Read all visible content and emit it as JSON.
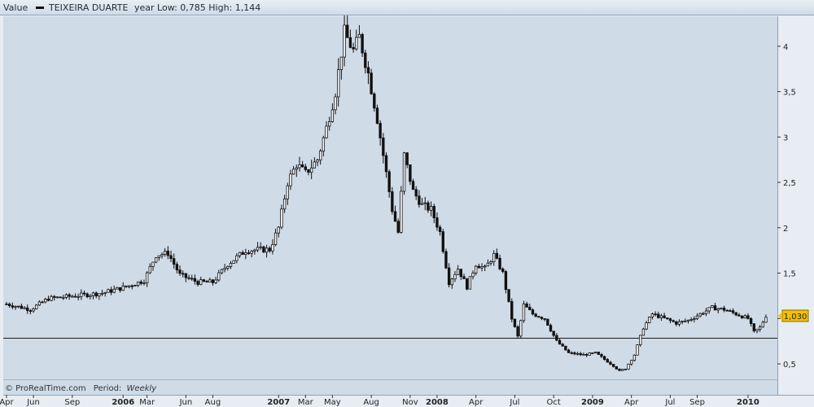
{
  "header": {
    "value_label": "Value",
    "instrument": "TEIXEIRA DUARTE",
    "range_text": "year Low: 0,785 High: 1,144"
  },
  "footer": {
    "source": "© ProRealTime.com",
    "period_label": "Period:",
    "period_value": "Weekly"
  },
  "colors": {
    "plot_bg": "#cfdbe7",
    "candle": "#111111",
    "badge": "#f5c000"
  },
  "chart_data": {
    "type": "candlestick",
    "series": [
      {
        "name": "TEIXEIRA DUARTE"
      }
    ],
    "ylim": [
      0.33,
      4.33
    ],
    "y_ticks": [
      "4",
      "3,5",
      "3",
      "2,5",
      "2",
      "1,5",
      "",
      "0,5"
    ],
    "y_tick_values": [
      4,
      3.5,
      3,
      2.5,
      2,
      1.5,
      1,
      0.5
    ],
    "x_ticks": [
      {
        "label": "Apr",
        "x": 0.0,
        "major": false
      },
      {
        "label": "Jun",
        "x": 9.0,
        "major": false
      },
      {
        "label": "Sep",
        "x": 22.0,
        "major": false
      },
      {
        "label": "2006",
        "x": 39.0,
        "major": true
      },
      {
        "label": "Mar",
        "x": 47.0,
        "major": false
      },
      {
        "label": "Jun",
        "x": 60.0,
        "major": false
      },
      {
        "label": "Aug",
        "x": 69.0,
        "major": false
      },
      {
        "label": "2007",
        "x": 91.0,
        "major": true
      },
      {
        "label": "Mar",
        "x": 100.0,
        "major": false
      },
      {
        "label": "May",
        "x": 109.0,
        "major": false
      },
      {
        "label": "Aug",
        "x": 122.0,
        "major": false
      },
      {
        "label": "Nov",
        "x": 135.0,
        "major": false
      },
      {
        "label": "2008",
        "x": 144.0,
        "major": true
      },
      {
        "label": "Apr",
        "x": 157.0,
        "major": false
      },
      {
        "label": "Jul",
        "x": 170.0,
        "major": false
      },
      {
        "label": "Oct",
        "x": 183.0,
        "major": false
      },
      {
        "label": "2009",
        "x": 196.0,
        "major": true
      },
      {
        "label": "Apr",
        "x": 209.0,
        "major": false
      },
      {
        "label": "Jul",
        "x": 222.0,
        "major": false
      },
      {
        "label": "Sep",
        "x": 231.0,
        "major": false
      },
      {
        "label": "2010",
        "x": 248.0,
        "major": true
      }
    ],
    "last_value_label": "1,030",
    "last_value": 1.03,
    "horizontal_line": 0.785,
    "grid": false,
    "key_closes": [
      {
        "x": 0,
        "y": 1.16
      },
      {
        "x": 8,
        "y": 1.1
      },
      {
        "x": 14,
        "y": 1.22
      },
      {
        "x": 26,
        "y": 1.26
      },
      {
        "x": 32,
        "y": 1.28
      },
      {
        "x": 40,
        "y": 1.35
      },
      {
        "x": 46,
        "y": 1.42
      },
      {
        "x": 50,
        "y": 1.7
      },
      {
        "x": 54,
        "y": 1.72
      },
      {
        "x": 58,
        "y": 1.48
      },
      {
        "x": 64,
        "y": 1.4
      },
      {
        "x": 69,
        "y": 1.4
      },
      {
        "x": 74,
        "y": 1.6
      },
      {
        "x": 80,
        "y": 1.75
      },
      {
        "x": 86,
        "y": 1.76
      },
      {
        "x": 88,
        "y": 1.76
      },
      {
        "x": 91,
        "y": 2.0
      },
      {
        "x": 94,
        "y": 2.5
      },
      {
        "x": 97,
        "y": 2.7
      },
      {
        "x": 100,
        "y": 2.6
      },
      {
        "x": 104,
        "y": 2.75
      },
      {
        "x": 107,
        "y": 3.1
      },
      {
        "x": 110,
        "y": 3.5
      },
      {
        "x": 113,
        "y": 4.15
      },
      {
        "x": 116,
        "y": 3.95
      },
      {
        "x": 118,
        "y": 4.1
      },
      {
        "x": 121,
        "y": 3.7
      },
      {
        "x": 124,
        "y": 3.2
      },
      {
        "x": 127,
        "y": 2.6
      },
      {
        "x": 129,
        "y": 2.2
      },
      {
        "x": 131,
        "y": 1.95
      },
      {
        "x": 133,
        "y": 2.8
      },
      {
        "x": 136,
        "y": 2.4
      },
      {
        "x": 139,
        "y": 2.25
      },
      {
        "x": 142,
        "y": 2.2
      },
      {
        "x": 145,
        "y": 1.95
      },
      {
        "x": 148,
        "y": 1.4
      },
      {
        "x": 151,
        "y": 1.55
      },
      {
        "x": 154,
        "y": 1.35
      },
      {
        "x": 157,
        "y": 1.6
      },
      {
        "x": 160,
        "y": 1.55
      },
      {
        "x": 163,
        "y": 1.7
      },
      {
        "x": 166,
        "y": 1.5
      },
      {
        "x": 169,
        "y": 1.0
      },
      {
        "x": 171,
        "y": 0.8
      },
      {
        "x": 173,
        "y": 1.15
      },
      {
        "x": 176,
        "y": 1.05
      },
      {
        "x": 180,
        "y": 1.0
      },
      {
        "x": 184,
        "y": 0.75
      },
      {
        "x": 188,
        "y": 0.62
      },
      {
        "x": 193,
        "y": 0.6
      },
      {
        "x": 197,
        "y": 0.62
      },
      {
        "x": 200,
        "y": 0.55
      },
      {
        "x": 203,
        "y": 0.48
      },
      {
        "x": 205,
        "y": 0.42
      },
      {
        "x": 207,
        "y": 0.45
      },
      {
        "x": 210,
        "y": 0.6
      },
      {
        "x": 213,
        "y": 0.9
      },
      {
        "x": 216,
        "y": 1.05
      },
      {
        "x": 220,
        "y": 1.0
      },
      {
        "x": 224,
        "y": 0.95
      },
      {
        "x": 228,
        "y": 0.98
      },
      {
        "x": 232,
        "y": 1.05
      },
      {
        "x": 236,
        "y": 1.12
      },
      {
        "x": 240,
        "y": 1.1
      },
      {
        "x": 244,
        "y": 1.05
      },
      {
        "x": 248,
        "y": 1.0
      },
      {
        "x": 250,
        "y": 0.85
      },
      {
        "x": 252,
        "y": 0.9
      },
      {
        "x": 254,
        "y": 1.03
      }
    ]
  }
}
